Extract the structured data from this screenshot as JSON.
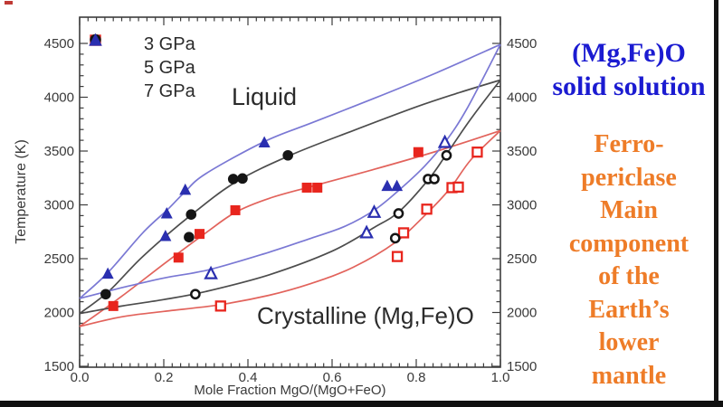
{
  "side_panel": {
    "title_lines": [
      "(Mg,Fe)O",
      "solid solution"
    ],
    "title_color": "#1b1bd1",
    "subtitle_lines": [
      "Ferro-",
      "periclase",
      "Main",
      "component",
      "of the",
      "Earth’s",
      "lower",
      "mantle"
    ],
    "subtitle_color": "#ee7c28"
  },
  "chart_data": {
    "type": "scatter",
    "title": "",
    "xlabel": "Mole Fraction MgO/(MgO+FeO)",
    "ylabel": "Temperature (K)",
    "xlim": [
      0.0,
      1.0
    ],
    "ylim": [
      1500,
      4500
    ],
    "grid": false,
    "x_major_ticks": [
      0.0,
      0.2,
      0.4,
      0.6,
      0.8,
      1.0
    ],
    "x_tick_labels": [
      "0.0",
      "0.2",
      "0.4",
      "0.6",
      "0.8",
      "1.0"
    ],
    "x_minor_step": 0.02,
    "y_major_ticks": [
      1500,
      2000,
      2500,
      3000,
      3500,
      4000,
      4500
    ],
    "y_minor_step": 100,
    "axis_color": "#3c3c3c",
    "tick_label_color": "#3a3a3a",
    "legend": {
      "position": "top-left",
      "items": [
        {
          "label": "3 GPa",
          "marker": "square",
          "color": "#e8251d"
        },
        {
          "label": "5 GPa",
          "marker": "circle",
          "color": "#151515"
        },
        {
          "label": "7 GPa",
          "marker": "triangle",
          "color": "#2a2fb0"
        }
      ]
    },
    "annotations": [
      {
        "text": "Liquid",
        "x": 0.4,
        "y": 4050
      },
      {
        "text": "Crystalline (Mg,Fe)O",
        "x": 0.43,
        "y": 2150
      }
    ],
    "series": [
      {
        "name": "3 GPa liquid",
        "marker": "square",
        "fill": "filled",
        "color": "#e8251d",
        "points": [
          [
            0.08,
            2060
          ],
          [
            0.235,
            2510
          ],
          [
            0.285,
            2730
          ],
          [
            0.37,
            2950
          ],
          [
            0.54,
            3160
          ],
          [
            0.565,
            3160
          ],
          [
            0.805,
            3490
          ]
        ]
      },
      {
        "name": "3 GPa solid",
        "marker": "square",
        "fill": "open",
        "color": "#e8251d",
        "points": [
          [
            0.335,
            2060
          ],
          [
            0.755,
            2520
          ],
          [
            0.77,
            2740
          ],
          [
            0.825,
            2960
          ],
          [
            0.885,
            3160
          ],
          [
            0.9,
            3165
          ],
          [
            0.945,
            3490
          ]
        ]
      },
      {
        "name": "5 GPa liquid",
        "marker": "circle",
        "fill": "filled",
        "color": "#151515",
        "points": [
          [
            0.062,
            2170
          ],
          [
            0.26,
            2700
          ],
          [
            0.265,
            2910
          ],
          [
            0.365,
            3240
          ],
          [
            0.387,
            3245
          ],
          [
            0.495,
            3460
          ]
        ]
      },
      {
        "name": "5 GPa solid",
        "marker": "circle",
        "fill": "open",
        "color": "#151515",
        "points": [
          [
            0.275,
            2170
          ],
          [
            0.75,
            2690
          ],
          [
            0.758,
            2920
          ],
          [
            0.828,
            3240
          ],
          [
            0.843,
            3240
          ],
          [
            0.872,
            3460
          ]
        ]
      },
      {
        "name": "7 GPa liquid",
        "marker": "triangle",
        "fill": "filled",
        "color": "#2a2fb0",
        "points": [
          [
            0.067,
            2360
          ],
          [
            0.204,
            2710
          ],
          [
            0.207,
            2920
          ],
          [
            0.251,
            3140
          ],
          [
            0.439,
            3580
          ],
          [
            0.731,
            3175
          ],
          [
            0.754,
            3175
          ]
        ]
      },
      {
        "name": "7 GPa solid",
        "marker": "triangle",
        "fill": "open",
        "color": "#2a2fb0",
        "points": [
          [
            0.312,
            2360
          ],
          [
            0.682,
            2740
          ],
          [
            0.7,
            2930
          ],
          [
            0.868,
            3580
          ]
        ]
      }
    ],
    "curves": [
      {
        "name": "3 GPa liquidus",
        "color": "#e2635c",
        "points": [
          [
            0,
            1870
          ],
          [
            0.1,
            2150
          ],
          [
            0.2,
            2450
          ],
          [
            0.3,
            2740
          ],
          [
            0.37,
            2930
          ],
          [
            0.45,
            3060
          ],
          [
            0.55,
            3170
          ],
          [
            0.7,
            3330
          ],
          [
            0.85,
            3500
          ],
          [
            1.0,
            3690
          ]
        ]
      },
      {
        "name": "3 GPa solidus",
        "color": "#e2635c",
        "points": [
          [
            0,
            1870
          ],
          [
            0.1,
            1960
          ],
          [
            0.2,
            2010
          ],
          [
            0.33,
            2070
          ],
          [
            0.45,
            2160
          ],
          [
            0.55,
            2270
          ],
          [
            0.65,
            2420
          ],
          [
            0.75,
            2650
          ],
          [
            0.82,
            2900
          ],
          [
            0.88,
            3150
          ],
          [
            0.93,
            3420
          ],
          [
            1.0,
            3690
          ]
        ]
      },
      {
        "name": "5 GPa liquidus",
        "color": "#4d4d4d",
        "points": [
          [
            0,
            1990
          ],
          [
            0.07,
            2200
          ],
          [
            0.15,
            2520
          ],
          [
            0.26,
            2890
          ],
          [
            0.37,
            3210
          ],
          [
            0.5,
            3460
          ],
          [
            0.65,
            3690
          ],
          [
            0.8,
            3910
          ],
          [
            0.9,
            4040
          ],
          [
            1.0,
            4160
          ]
        ]
      },
      {
        "name": "5 GPa solidus",
        "color": "#4d4d4d",
        "points": [
          [
            0,
            1990
          ],
          [
            0.1,
            2060
          ],
          [
            0.2,
            2120
          ],
          [
            0.3,
            2195
          ],
          [
            0.45,
            2350
          ],
          [
            0.6,
            2570
          ],
          [
            0.7,
            2790
          ],
          [
            0.76,
            2940
          ],
          [
            0.83,
            3240
          ],
          [
            0.87,
            3460
          ],
          [
            0.93,
            3800
          ],
          [
            1.0,
            4160
          ]
        ]
      },
      {
        "name": "7 GPa liquidus",
        "color": "#7a78d4",
        "points": [
          [
            0,
            2130
          ],
          [
            0.067,
            2370
          ],
          [
            0.15,
            2740
          ],
          [
            0.21,
            2960
          ],
          [
            0.25,
            3120
          ],
          [
            0.3,
            3290
          ],
          [
            0.44,
            3590
          ],
          [
            0.55,
            3760
          ],
          [
            0.7,
            3990
          ],
          [
            0.85,
            4230
          ],
          [
            1.0,
            4490
          ]
        ]
      },
      {
        "name": "7 GPa solidus",
        "color": "#7a78d4",
        "points": [
          [
            0,
            2130
          ],
          [
            0.1,
            2230
          ],
          [
            0.2,
            2320
          ],
          [
            0.31,
            2400
          ],
          [
            0.45,
            2560
          ],
          [
            0.55,
            2690
          ],
          [
            0.63,
            2800
          ],
          [
            0.7,
            2950
          ],
          [
            0.76,
            3140
          ],
          [
            0.82,
            3360
          ],
          [
            0.87,
            3590
          ],
          [
            0.92,
            3890
          ],
          [
            1.0,
            4490
          ]
        ]
      }
    ]
  }
}
